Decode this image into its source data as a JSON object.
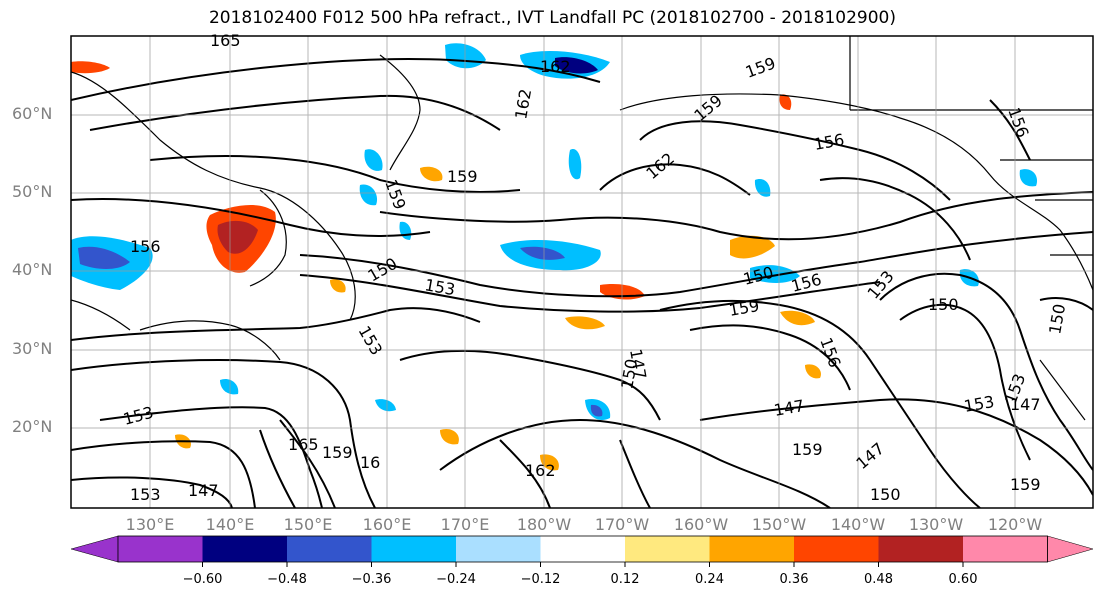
{
  "title": "2018102400 F012 500 hPa refract., IVT Landfall PC (2018102700 - 2018102900)",
  "lat_labels": [
    "60°N",
    "50°N",
    "40°N",
    "30°N",
    "20°N"
  ],
  "lon_labels": [
    "130°E",
    "140°E",
    "150°E",
    "160°E",
    "170°E",
    "180°W",
    "170°W",
    "160°W",
    "150°W",
    "140°W",
    "130°W",
    "120°W"
  ],
  "colorbar": {
    "colors": [
      "#9933cc",
      "#000080",
      "#3355cc",
      "#00bfff",
      "#aadfff",
      "#ffffff",
      "#ffe97f",
      "#ffa500",
      "#ff4500",
      "#b22222",
      "#ff88aa"
    ],
    "ticks": [
      "−0.60",
      "−0.48",
      "−0.36",
      "−0.24",
      "−0.12",
      "0.12",
      "0.24",
      "0.36",
      "0.48",
      "0.60"
    ]
  },
  "contour_labels": [
    "165",
    "159",
    "162",
    "159",
    "156",
    "156",
    "159",
    "162",
    "159",
    "162",
    "156",
    "150",
    "153",
    "150",
    "153",
    "156",
    "150",
    "159",
    "153",
    "153",
    "150",
    "150",
    "147",
    "147",
    "153",
    "147",
    "156",
    "159",
    "147",
    "162",
    "165",
    "159",
    "16",
    "153",
    "147",
    "150",
    "159",
    "153"
  ]
}
